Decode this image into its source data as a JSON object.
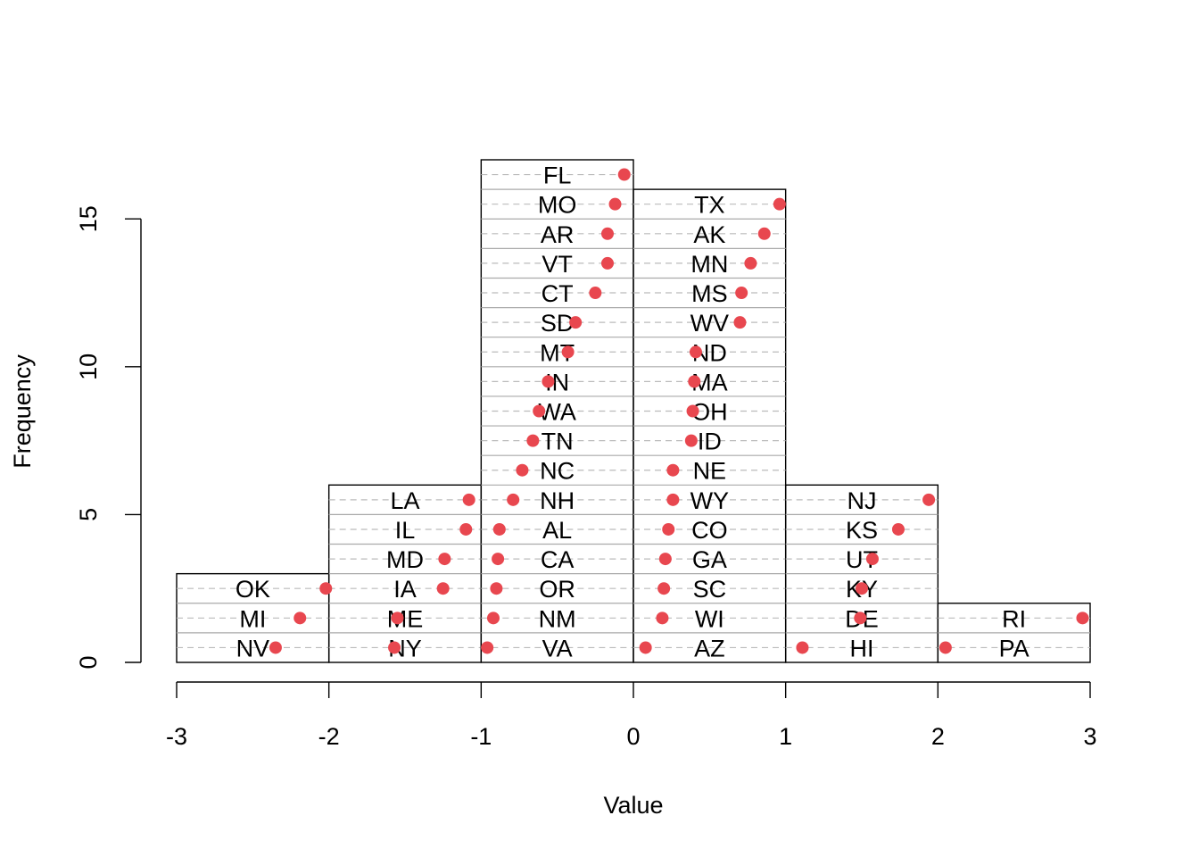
{
  "chart_data": {
    "type": "histogram",
    "title": "",
    "xlabel": "Value",
    "ylabel": "Frequency",
    "xlim": [
      -3,
      3
    ],
    "ylim": [
      0,
      17
    ],
    "x_ticks": [
      "-3",
      "-2",
      "-1",
      "0",
      "1",
      "2",
      "3"
    ],
    "y_ticks": [
      "0",
      "5",
      "10",
      "15"
    ],
    "bins": [
      {
        "x0": -3,
        "x1": -2,
        "count": 3
      },
      {
        "x0": -2,
        "x1": -1,
        "count": 6
      },
      {
        "x0": -1,
        "x1": 0,
        "count": 17
      },
      {
        "x0": 0,
        "x1": 1,
        "count": 16
      },
      {
        "x0": 1,
        "x1": 2,
        "count": 6
      },
      {
        "x0": 2,
        "x1": 3,
        "count": 2
      }
    ],
    "points": [
      {
        "label": "NV",
        "value": -2.35
      },
      {
        "label": "MI",
        "value": -2.19
      },
      {
        "label": "OK",
        "value": -2.02
      },
      {
        "label": "NY",
        "value": -1.57
      },
      {
        "label": "ME",
        "value": -1.55
      },
      {
        "label": "IA",
        "value": -1.25
      },
      {
        "label": "MD",
        "value": -1.24
      },
      {
        "label": "IL",
        "value": -1.1
      },
      {
        "label": "LA",
        "value": -1.08
      },
      {
        "label": "VA",
        "value": -0.96
      },
      {
        "label": "NM",
        "value": -0.92
      },
      {
        "label": "OR",
        "value": -0.9
      },
      {
        "label": "CA",
        "value": -0.89
      },
      {
        "label": "AL",
        "value": -0.88
      },
      {
        "label": "NH",
        "value": -0.79
      },
      {
        "label": "NC",
        "value": -0.73
      },
      {
        "label": "TN",
        "value": -0.66
      },
      {
        "label": "WA",
        "value": -0.62
      },
      {
        "label": "IN",
        "value": -0.56
      },
      {
        "label": "MT",
        "value": -0.43
      },
      {
        "label": "SD",
        "value": -0.38
      },
      {
        "label": "CT",
        "value": -0.25
      },
      {
        "label": "VT",
        "value": -0.17
      },
      {
        "label": "AR",
        "value": -0.17
      },
      {
        "label": "MO",
        "value": -0.12
      },
      {
        "label": "FL",
        "value": -0.06
      },
      {
        "label": "AZ",
        "value": 0.08
      },
      {
        "label": "WI",
        "value": 0.19
      },
      {
        "label": "SC",
        "value": 0.2
      },
      {
        "label": "GA",
        "value": 0.21
      },
      {
        "label": "CO",
        "value": 0.23
      },
      {
        "label": "WY",
        "value": 0.26
      },
      {
        "label": "NE",
        "value": 0.26
      },
      {
        "label": "ID",
        "value": 0.38
      },
      {
        "label": "OH",
        "value": 0.39
      },
      {
        "label": "MA",
        "value": 0.4
      },
      {
        "label": "ND",
        "value": 0.41
      },
      {
        "label": "WV",
        "value": 0.7
      },
      {
        "label": "MS",
        "value": 0.71
      },
      {
        "label": "MN",
        "value": 0.77
      },
      {
        "label": "AK",
        "value": 0.86
      },
      {
        "label": "TX",
        "value": 0.96
      },
      {
        "label": "HI",
        "value": 1.11
      },
      {
        "label": "DE",
        "value": 1.49
      },
      {
        "label": "KY",
        "value": 1.5
      },
      {
        "label": "UT",
        "value": 1.57
      },
      {
        "label": "KS",
        "value": 1.74
      },
      {
        "label": "NJ",
        "value": 1.94
      },
      {
        "label": "PA",
        "value": 2.05
      },
      {
        "label": "RI",
        "value": 2.95
      }
    ],
    "grid": false,
    "colors": {
      "point": "#e8474f",
      "bar_stroke": "#000000",
      "divider": "#aaaaaa",
      "guide": "#bbbbbb"
    }
  }
}
